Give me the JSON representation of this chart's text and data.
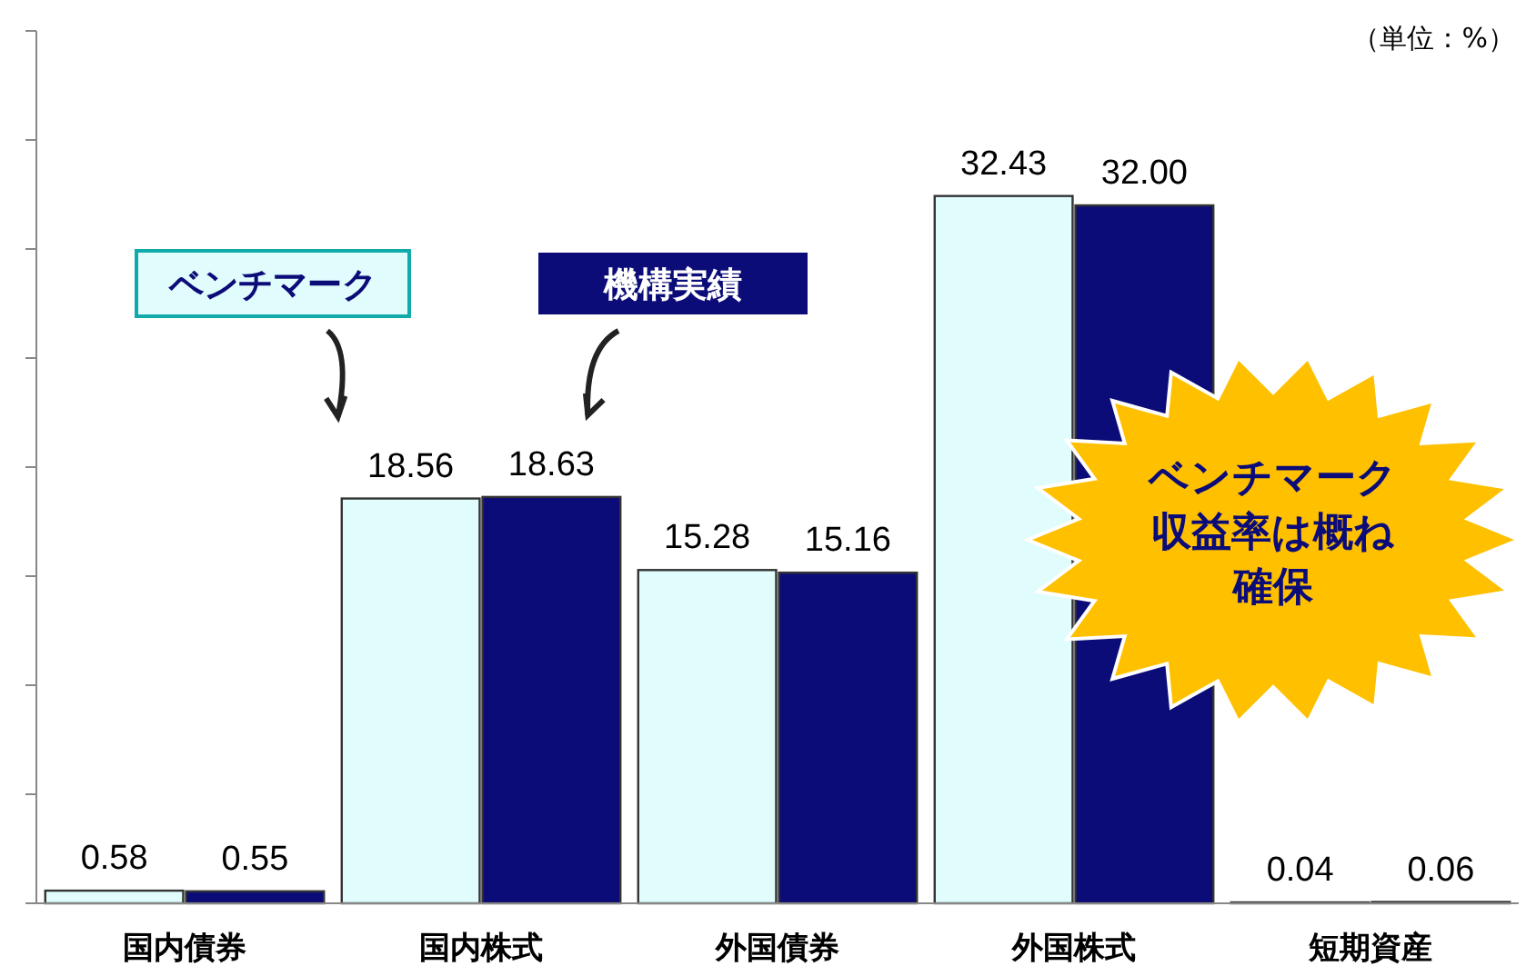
{
  "chart_data": {
    "type": "bar",
    "categories": [
      "国内債券",
      "国内株式",
      "外国債券",
      "外国株式",
      "短期資産"
    ],
    "series": [
      {
        "name": "ベンチマーク",
        "color": "#e0fcfc",
        "values": [
          0.58,
          18.56,
          15.28,
          32.43,
          0.04
        ],
        "value_labels": [
          "0.58",
          "18.56",
          "15.28",
          "32.43",
          "0.04"
        ]
      },
      {
        "name": "機構実績",
        "color": "#0c0c78",
        "values": [
          0.55,
          18.63,
          15.16,
          32.0,
          0.06
        ],
        "value_labels": [
          "0.55",
          "18.63",
          "15.16",
          "32.00",
          "0.06"
        ]
      }
    ],
    "ylim": [
      0,
      40
    ],
    "yticks": [
      {
        "value": 0,
        "label": null
      },
      {
        "value": 5,
        "label": null
      },
      {
        "value": 10,
        "label": null
      },
      {
        "value": 15,
        "label": null
      },
      {
        "value": 20,
        "label": null
      },
      {
        "value": 25,
        "label": null
      },
      {
        "value": 30,
        "label": null
      },
      {
        "value": 35,
        "label": null
      },
      {
        "value": 40,
        "label": null
      }
    ],
    "legend": "top",
    "grid": false,
    "annotations": [
      "（単位：%）",
      "ベンチマーク収益率は概ね確保"
    ]
  }
}
